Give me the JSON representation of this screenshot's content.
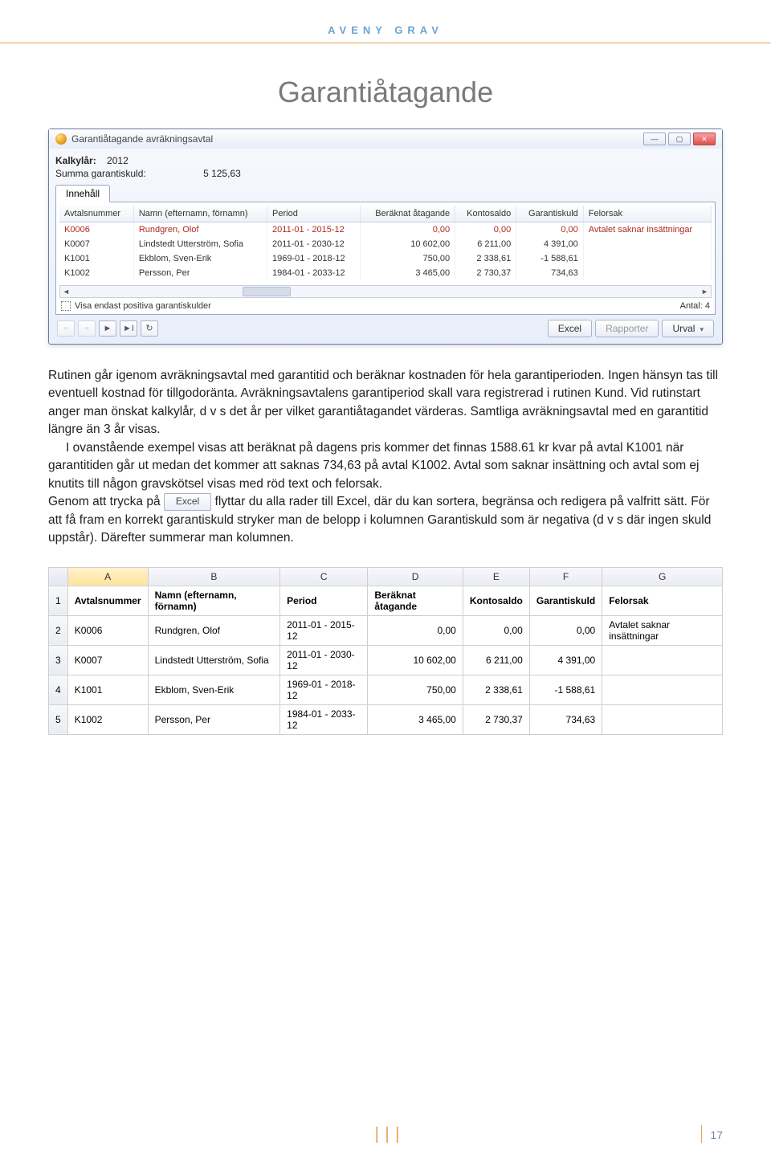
{
  "brand": "AVENY GRAV",
  "title": "Garantiåtagande",
  "page_number": "17",
  "window": {
    "title": "Garantiåtagande avräkningsavtal",
    "kalkyl_label": "Kalkylår:",
    "kalkyl_value": "2012",
    "summa_label": "Summa garantiskuld:",
    "summa_value": "5 125,63",
    "tab": "Innehåll",
    "columns": {
      "c1": "Avtalsnummer",
      "c2": "Namn (efternamn, förnamn)",
      "c3": "Period",
      "c4": "Beräknat åtagande",
      "c5": "Kontosaldo",
      "c6": "Garantiskuld",
      "c7": "Felorsak"
    },
    "rows": [
      {
        "err": true,
        "c1": "K0006",
        "c2": "Rundgren, Olof",
        "c3": "2011-01 - 2015-12",
        "c4": "0,00",
        "c5": "0,00",
        "c6": "0,00",
        "c7": "Avtalet saknar insättningar"
      },
      {
        "err": false,
        "c1": "K0007",
        "c2": "Lindstedt Utterström, Sofia",
        "c3": "2011-01 - 2030-12",
        "c4": "10 602,00",
        "c5": "6 211,00",
        "c6": "4 391,00",
        "c7": ""
      },
      {
        "err": false,
        "c1": "K1001",
        "c2": "Ekblom, Sven-Erik",
        "c3": "1969-01 - 2018-12",
        "c4": "750,00",
        "c5": "2 338,61",
        "c6": "-1 588,61",
        "c7": ""
      },
      {
        "err": false,
        "c1": "K1002",
        "c2": "Persson, Per",
        "c3": "1984-01 - 2033-12",
        "c4": "3 465,00",
        "c5": "2 730,37",
        "c6": "734,63",
        "c7": ""
      }
    ],
    "footer_check": "Visa endast positiva garantiskulder",
    "footer_count_label": "Antal:",
    "footer_count": "4",
    "btn_excel": "Excel",
    "btn_rapporter": "Rapporter",
    "btn_urval": "Urval"
  },
  "body": {
    "p1": "Rutinen går igenom avräkningsavtal med garantitid och beräknar kostnaden för hela garantiperioden. Ingen hänsyn tas till eventuell kostnad för tillgodoränta. Avräkningsavtalens garantiperiod skall vara registrerad i rutinen Kund. Vid rutinstart anger man önskat kalkylår, d v s det år per vilket garantiåtagandet värderas. Samtliga avräkningsavtal med en garantitid längre än 3 år visas.",
    "p2": "I ovanstående exempel visas att beräknat på dagens pris kommer det finnas 1588.61 kr kvar på avtal K1001 när garantitiden går ut medan det kommer att saknas 734,63 på avtal K1002. Avtal som saknar insättning och avtal som ej knutits till någon gravskötsel visas med röd text och  felorsak.",
    "p3a": "Genom att trycka på ",
    "p3_btn": "Excel",
    "p3b": " flyttar du alla rader till Excel, där du kan sortera, begränsa och redigera på valfritt sätt. För att få fram en korrekt garantiskuld stryker man de belopp i kolumnen Garantiskuld som är negativa (d v s där ingen skuld uppstår). Därefter summerar man kolumnen."
  },
  "excel": {
    "cols": [
      "A",
      "B",
      "C",
      "D",
      "E",
      "F",
      "G"
    ],
    "header": [
      "Avtalsnummer",
      "Namn (efternamn, förnamn)",
      "Period",
      "Beräknat åtagande",
      "Kontosaldo",
      "Garantiskuld",
      "Felorsak"
    ],
    "rows": [
      [
        "K0006",
        "Rundgren, Olof",
        "2011-01 - 2015-12",
        "0,00",
        "0,00",
        "0,00",
        "Avtalet saknar insättningar"
      ],
      [
        "K0007",
        "Lindstedt Utterström, Sofia",
        "2011-01 - 2030-12",
        "10 602,00",
        "6 211,00",
        "4 391,00",
        ""
      ],
      [
        "K1001",
        "Ekblom, Sven-Erik",
        "1969-01 - 2018-12",
        "750,00",
        "2 338,61",
        "-1 588,61",
        ""
      ],
      [
        "K1002",
        "Persson, Per",
        "1984-01 - 2033-12",
        "3 465,00",
        "2 730,37",
        "734,63",
        ""
      ]
    ]
  }
}
